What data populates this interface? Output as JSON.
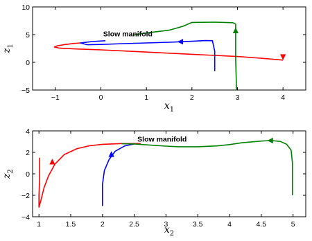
{
  "chart_data": [
    {
      "type": "line",
      "xlabel": "x",
      "xlabel_sub": "1",
      "ylabel": "z",
      "ylabel_sub": "1",
      "xlim": [
        -1.5,
        4.5
      ],
      "ylim": [
        -5,
        10
      ],
      "xticks": [
        -1,
        0,
        1,
        2,
        3,
        4
      ],
      "yticks": [
        -5,
        0,
        5,
        10
      ],
      "tick_labels_x": [
        "−1",
        "0",
        "1",
        "2",
        "3",
        "4"
      ],
      "tick_labels_y": [
        "−5",
        "0",
        "5",
        "10"
      ],
      "annotations": [
        {
          "text": "Slow manifold",
          "x": 0.05,
          "y": 4.7
        }
      ],
      "grid": false,
      "series": [
        {
          "color": "#ff0000",
          "points": [
            [
              4.0,
              0.4
            ],
            [
              3.5,
              0.75
            ],
            [
              3.0,
              1.05
            ],
            [
              2.5,
              1.25
            ],
            [
              2.0,
              1.45
            ],
            [
              1.5,
              1.65
            ],
            [
              1.0,
              1.85
            ],
            [
              0.5,
              2.05
            ],
            [
              0.0,
              2.25
            ],
            [
              -0.5,
              2.4
            ],
            [
              -0.9,
              2.55
            ],
            [
              -1.02,
              2.75
            ],
            [
              -0.95,
              3.0
            ],
            [
              -0.8,
              3.2
            ],
            [
              -0.6,
              3.4
            ],
            [
              -0.45,
              3.5
            ]
          ],
          "arrows": [
            {
              "x": 4.0,
              "y": 1.4,
              "dir": "down"
            }
          ]
        },
        {
          "color": "#0000ff",
          "points": [
            [
              2.5,
              -1.6
            ],
            [
              2.5,
              2.0
            ],
            [
              2.45,
              3.9
            ],
            [
              2.3,
              3.92
            ],
            [
              2.0,
              3.8
            ],
            [
              1.5,
              3.63
            ],
            [
              1.0,
              3.5
            ],
            [
              0.5,
              3.38
            ],
            [
              0.0,
              3.23
            ],
            [
              -0.3,
              3.18
            ],
            [
              -0.45,
              3.5
            ],
            [
              -0.2,
              3.75
            ],
            [
              0.1,
              3.9
            ]
          ],
          "arrows": [
            {
              "x": 1.8,
              "y": 3.72,
              "dir": "left"
            }
          ]
        },
        {
          "color": "#008000",
          "points": [
            [
              2.98,
              -5.0
            ],
            [
              2.96,
              0.5
            ],
            [
              2.96,
              4.0
            ],
            [
              2.96,
              6.9
            ],
            [
              2.9,
              7.15
            ],
            [
              2.5,
              7.25
            ],
            [
              2.0,
              7.2
            ],
            [
              1.8,
              6.5
            ],
            [
              1.5,
              5.8
            ],
            [
              1.0,
              5.3
            ],
            [
              0.7,
              4.9
            ]
          ],
          "arrows": [
            {
              "x": 2.96,
              "y": 5.3,
              "dir": "up"
            }
          ]
        }
      ]
    },
    {
      "type": "line",
      "xlabel": "x",
      "xlabel_sub": "2",
      "ylabel": "z",
      "ylabel_sub": "2",
      "xlim": [
        0.9,
        5.2
      ],
      "ylim": [
        -4,
        4
      ],
      "xticks": [
        1,
        1.5,
        2,
        2.5,
        3,
        3.5,
        4,
        4.5,
        5
      ],
      "yticks": [
        -4,
        -2,
        0,
        2,
        4
      ],
      "tick_labels_x": [
        "1",
        "1.5",
        "2",
        "2.5",
        "3",
        "3.5",
        "4",
        "4.5",
        "5"
      ],
      "tick_labels_y": [
        "−4",
        "−2",
        "0",
        "2",
        "4"
      ],
      "annotations": [
        {
          "text": "Slow manifold",
          "x": 2.55,
          "y": 3.0
        }
      ],
      "grid": false,
      "series": [
        {
          "color": "#ff0000",
          "points": [
            [
              1.01,
              1.5
            ],
            [
              1.01,
              -0.5
            ],
            [
              1.0,
              -2.0
            ],
            [
              1.0,
              -3.1
            ],
            [
              1.03,
              -2.5
            ],
            [
              1.08,
              -1.3
            ],
            [
              1.15,
              -0.2
            ],
            [
              1.25,
              0.9
            ],
            [
              1.4,
              1.8
            ],
            [
              1.6,
              2.35
            ],
            [
              1.8,
              2.62
            ],
            [
              2.0,
              2.75
            ],
            [
              2.3,
              2.82
            ],
            [
              2.6,
              2.82
            ]
          ],
          "arrows": [
            {
              "x": 1.21,
              "y": 0.9,
              "dir": "up"
            }
          ]
        },
        {
          "color": "#0000ff",
          "points": [
            [
              2.0,
              -3.0
            ],
            [
              2.0,
              -1.0
            ],
            [
              2.03,
              0.3
            ],
            [
              2.1,
              1.3
            ],
            [
              2.2,
              2.1
            ],
            [
              2.35,
              2.6
            ],
            [
              2.5,
              2.78
            ]
          ],
          "arrows": [
            {
              "x": 2.14,
              "y": 1.6,
              "dir": "up"
            }
          ]
        },
        {
          "color": "#008000",
          "points": [
            [
              4.99,
              -2.0
            ],
            [
              4.99,
              1.0
            ],
            [
              4.97,
              2.2
            ],
            [
              4.9,
              2.75
            ],
            [
              4.8,
              3.02
            ],
            [
              4.65,
              3.1
            ],
            [
              4.5,
              3.05
            ],
            [
              4.2,
              2.9
            ],
            [
              4.0,
              2.72
            ],
            [
              3.8,
              2.6
            ],
            [
              3.5,
              2.52
            ],
            [
              3.2,
              2.52
            ],
            [
              3.0,
              2.58
            ],
            [
              2.8,
              2.66
            ],
            [
              2.5,
              2.78
            ],
            [
              2.3,
              2.8
            ]
          ],
          "arrows": [
            {
              "x": 4.68,
              "y": 3.1,
              "dir": "left"
            }
          ]
        }
      ]
    }
  ]
}
